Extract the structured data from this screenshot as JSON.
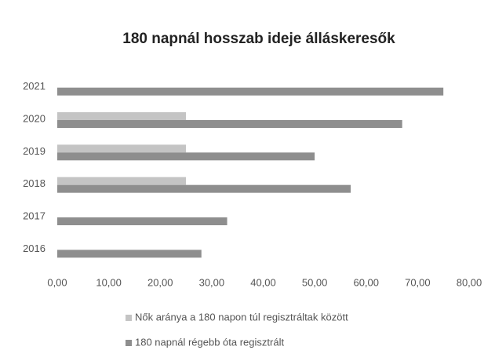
{
  "chart_data": {
    "type": "hbar",
    "title": "180 napnál hosszab ideje álláskeresők",
    "categories": [
      "2016",
      "2017",
      "2018",
      "2019",
      "2020",
      "2021"
    ],
    "series": [
      {
        "name": "Nők aránya a 180 napon túl regisztráltak között",
        "color": "#c4c4c4",
        "values": [
          null,
          null,
          25,
          25,
          25,
          null
        ]
      },
      {
        "name": "180 napnál régebb óta regisztrált",
        "color": "#8e8e8e",
        "values": [
          28,
          33,
          57,
          50,
          67,
          75
        ]
      }
    ],
    "xlim": [
      0,
      80
    ],
    "xticks": [
      {
        "value": 0,
        "label": "0,00"
      },
      {
        "value": 10,
        "label": "10,00"
      },
      {
        "value": 20,
        "label": "20,00"
      },
      {
        "value": 30,
        "label": "30,00"
      },
      {
        "value": 40,
        "label": "40,00"
      },
      {
        "value": 50,
        "label": "50,00"
      },
      {
        "value": 60,
        "label": "60,00"
      },
      {
        "value": 70,
        "label": "70,00"
      },
      {
        "value": 80,
        "label": "80,00"
      }
    ],
    "legend": "bottom"
  }
}
